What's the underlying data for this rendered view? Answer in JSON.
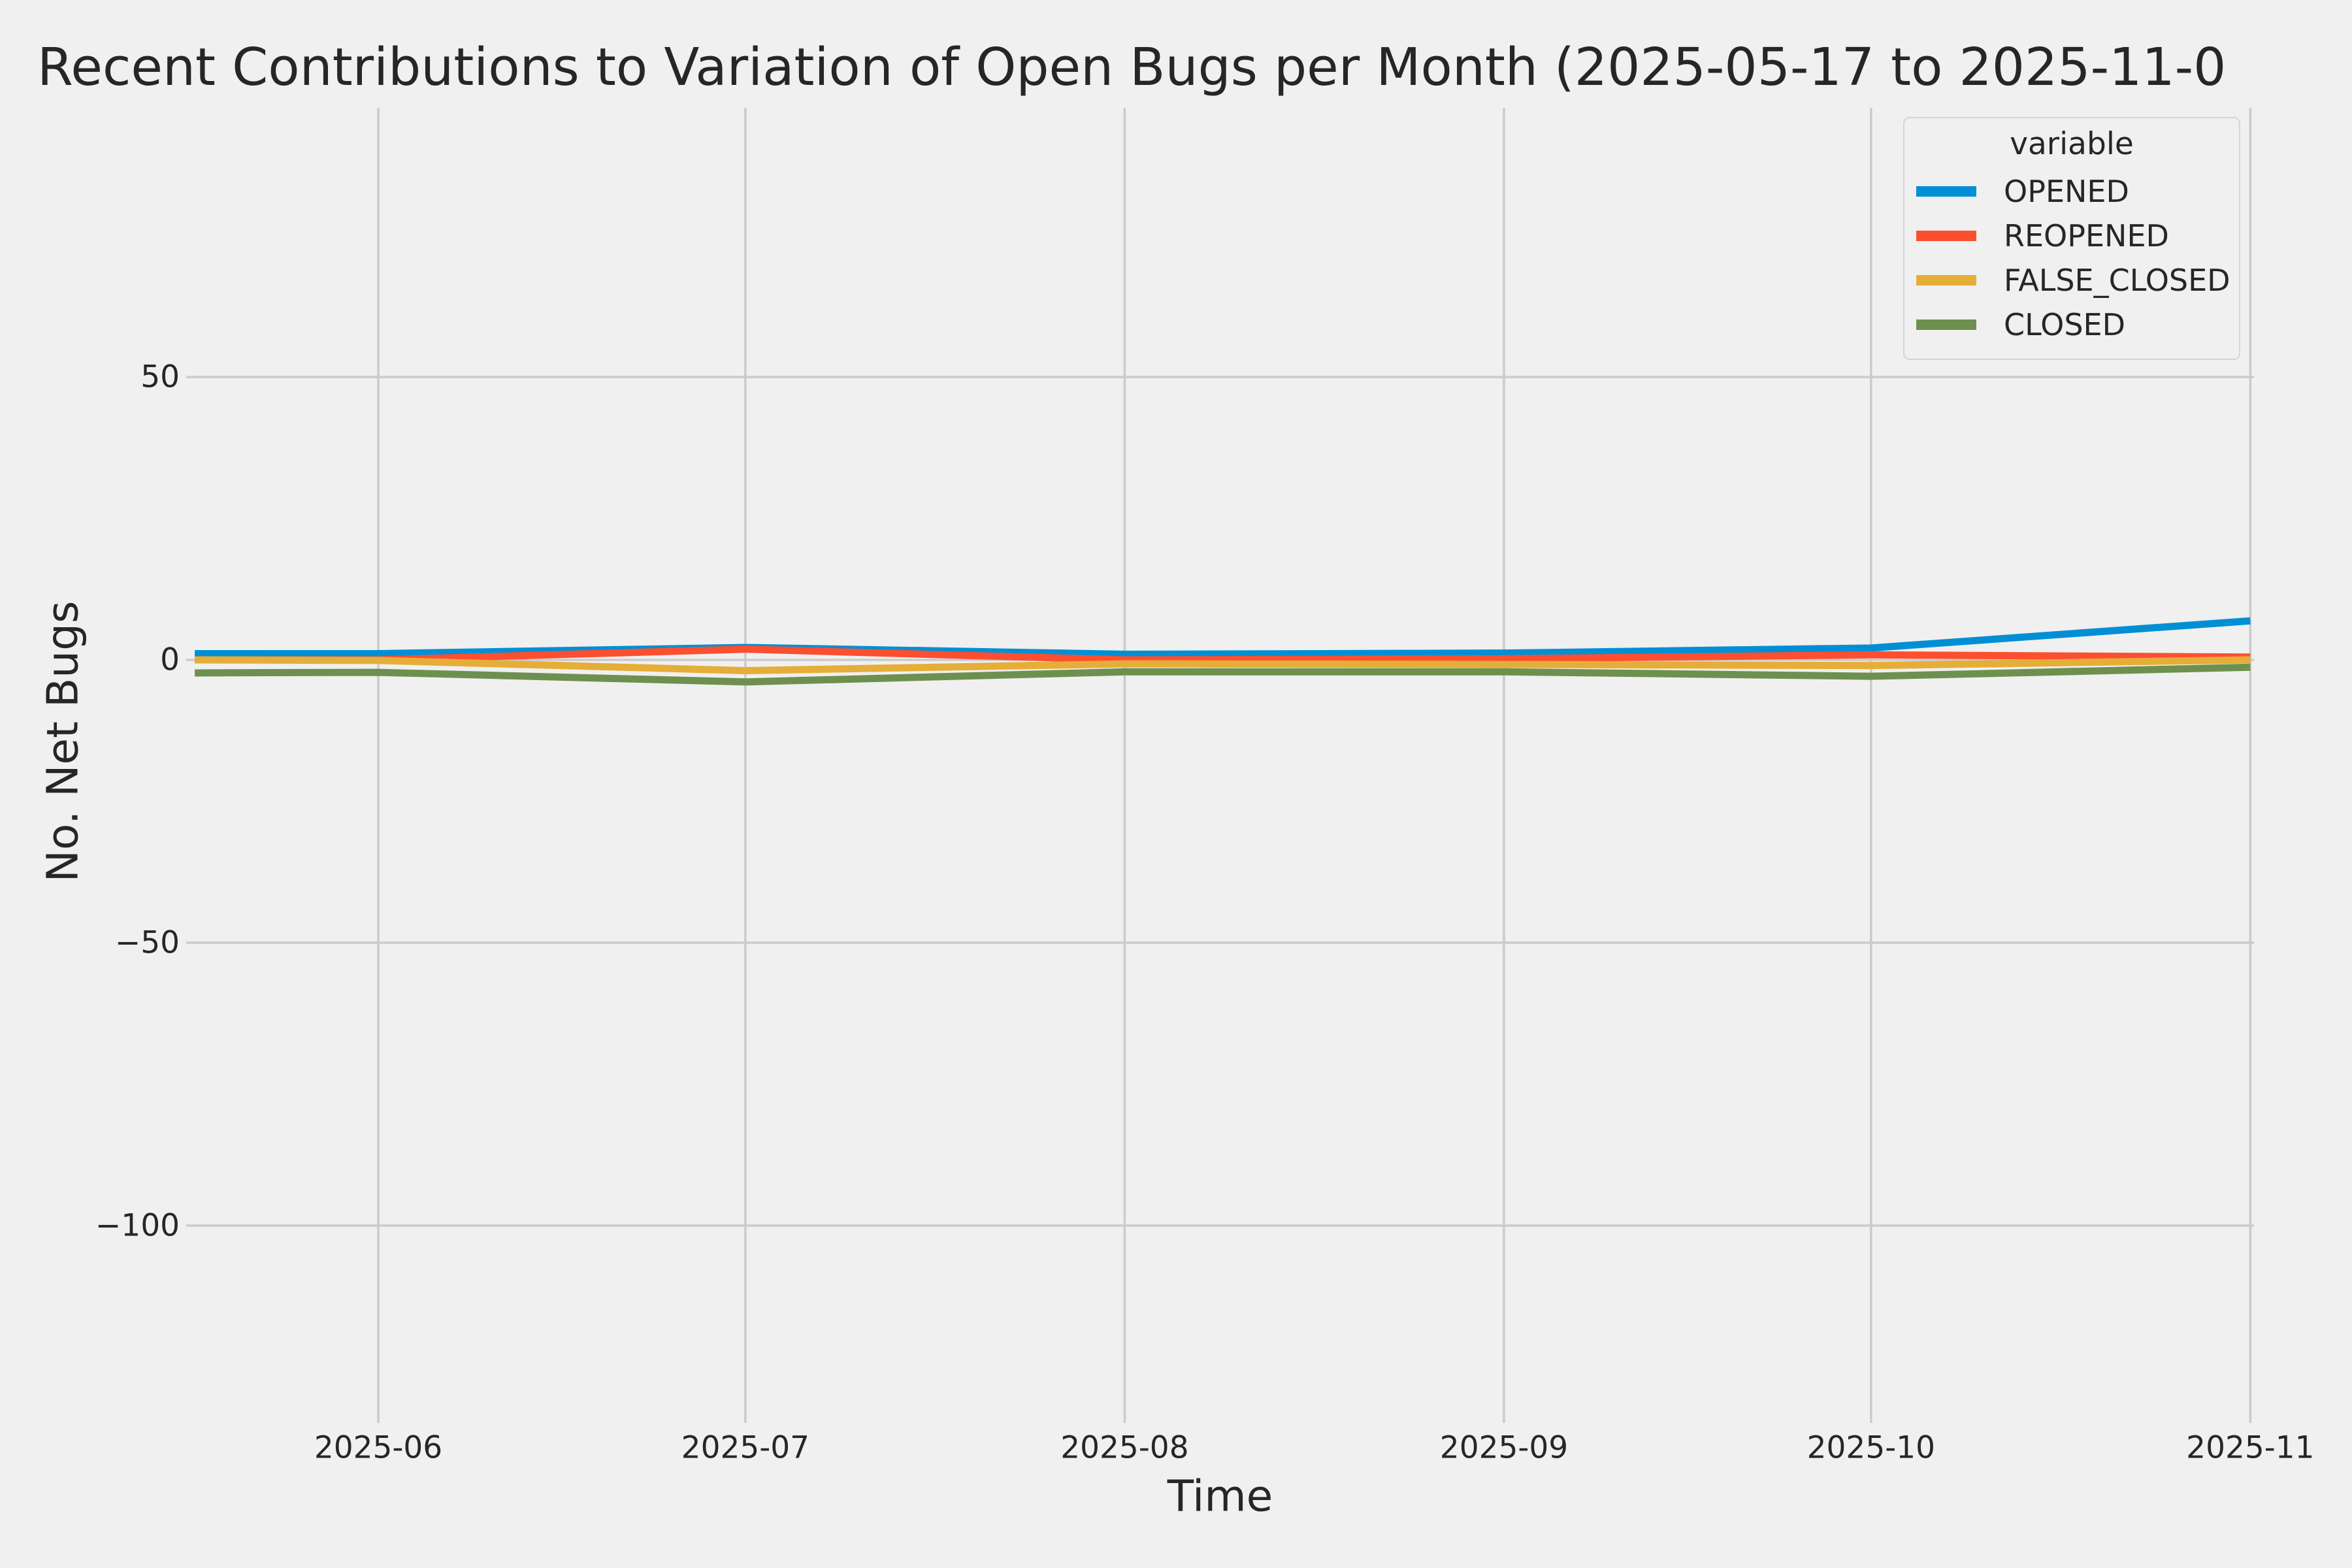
{
  "figure": {
    "background_color": "#f0f0f0",
    "grid_color": "#cbcbcb",
    "text_color": "#262626"
  },
  "title": "Recent Contributions to Variation of Open Bugs per Month (2025-05-17 to 2025-11-0",
  "chart_data": {
    "type": "line",
    "title": "Recent Contributions to Variation of Open Bugs per Month (2025-05-17 to 2025-11-0",
    "xlabel": "Time",
    "ylabel": "No. Net Bugs",
    "legend_title": "variable",
    "legend_position": "upper right",
    "grid": true,
    "x": [
      "2025-05-17",
      "2025-06-01",
      "2025-07-01",
      "2025-08-01",
      "2025-09-01",
      "2025-10-01",
      "2025-11-01"
    ],
    "x_days": [
      0,
      15,
      45,
      76,
      107,
      137,
      168
    ],
    "series": [
      {
        "name": "OPENED",
        "color": "#008fd5",
        "values": [
          1.1,
          1.1,
          2.2,
          1.0,
          1.2,
          2.1,
          6.9
        ]
      },
      {
        "name": "REOPENED",
        "color": "#fc4f30",
        "values": [
          0.0,
          0.0,
          1.9,
          0.0,
          0.2,
          0.9,
          0.5
        ]
      },
      {
        "name": "FALSE_CLOSED",
        "color": "#e5ae38",
        "values": [
          0.0,
          -0.1,
          -1.9,
          -0.7,
          -0.8,
          -1.0,
          0.0
        ]
      },
      {
        "name": "CLOSED",
        "color": "#6d904f",
        "values": [
          -2.3,
          -2.2,
          -3.9,
          -2.1,
          -2.1,
          -2.9,
          -1.3
        ]
      }
    ],
    "xtick_labels": [
      "2025-06",
      "2025-07",
      "2025-08",
      "2025-09",
      "2025-10",
      "2025-11"
    ],
    "xtick_days": [
      15,
      45,
      76,
      107,
      137,
      168
    ],
    "yticks": [
      50,
      0,
      -50,
      -100
    ],
    "ytick_labels": [
      "50",
      "0",
      "−50",
      "−100"
    ],
    "ylim": [
      -134.9,
      97.6
    ],
    "xlim_days": [
      -0.7,
      168.3
    ]
  }
}
